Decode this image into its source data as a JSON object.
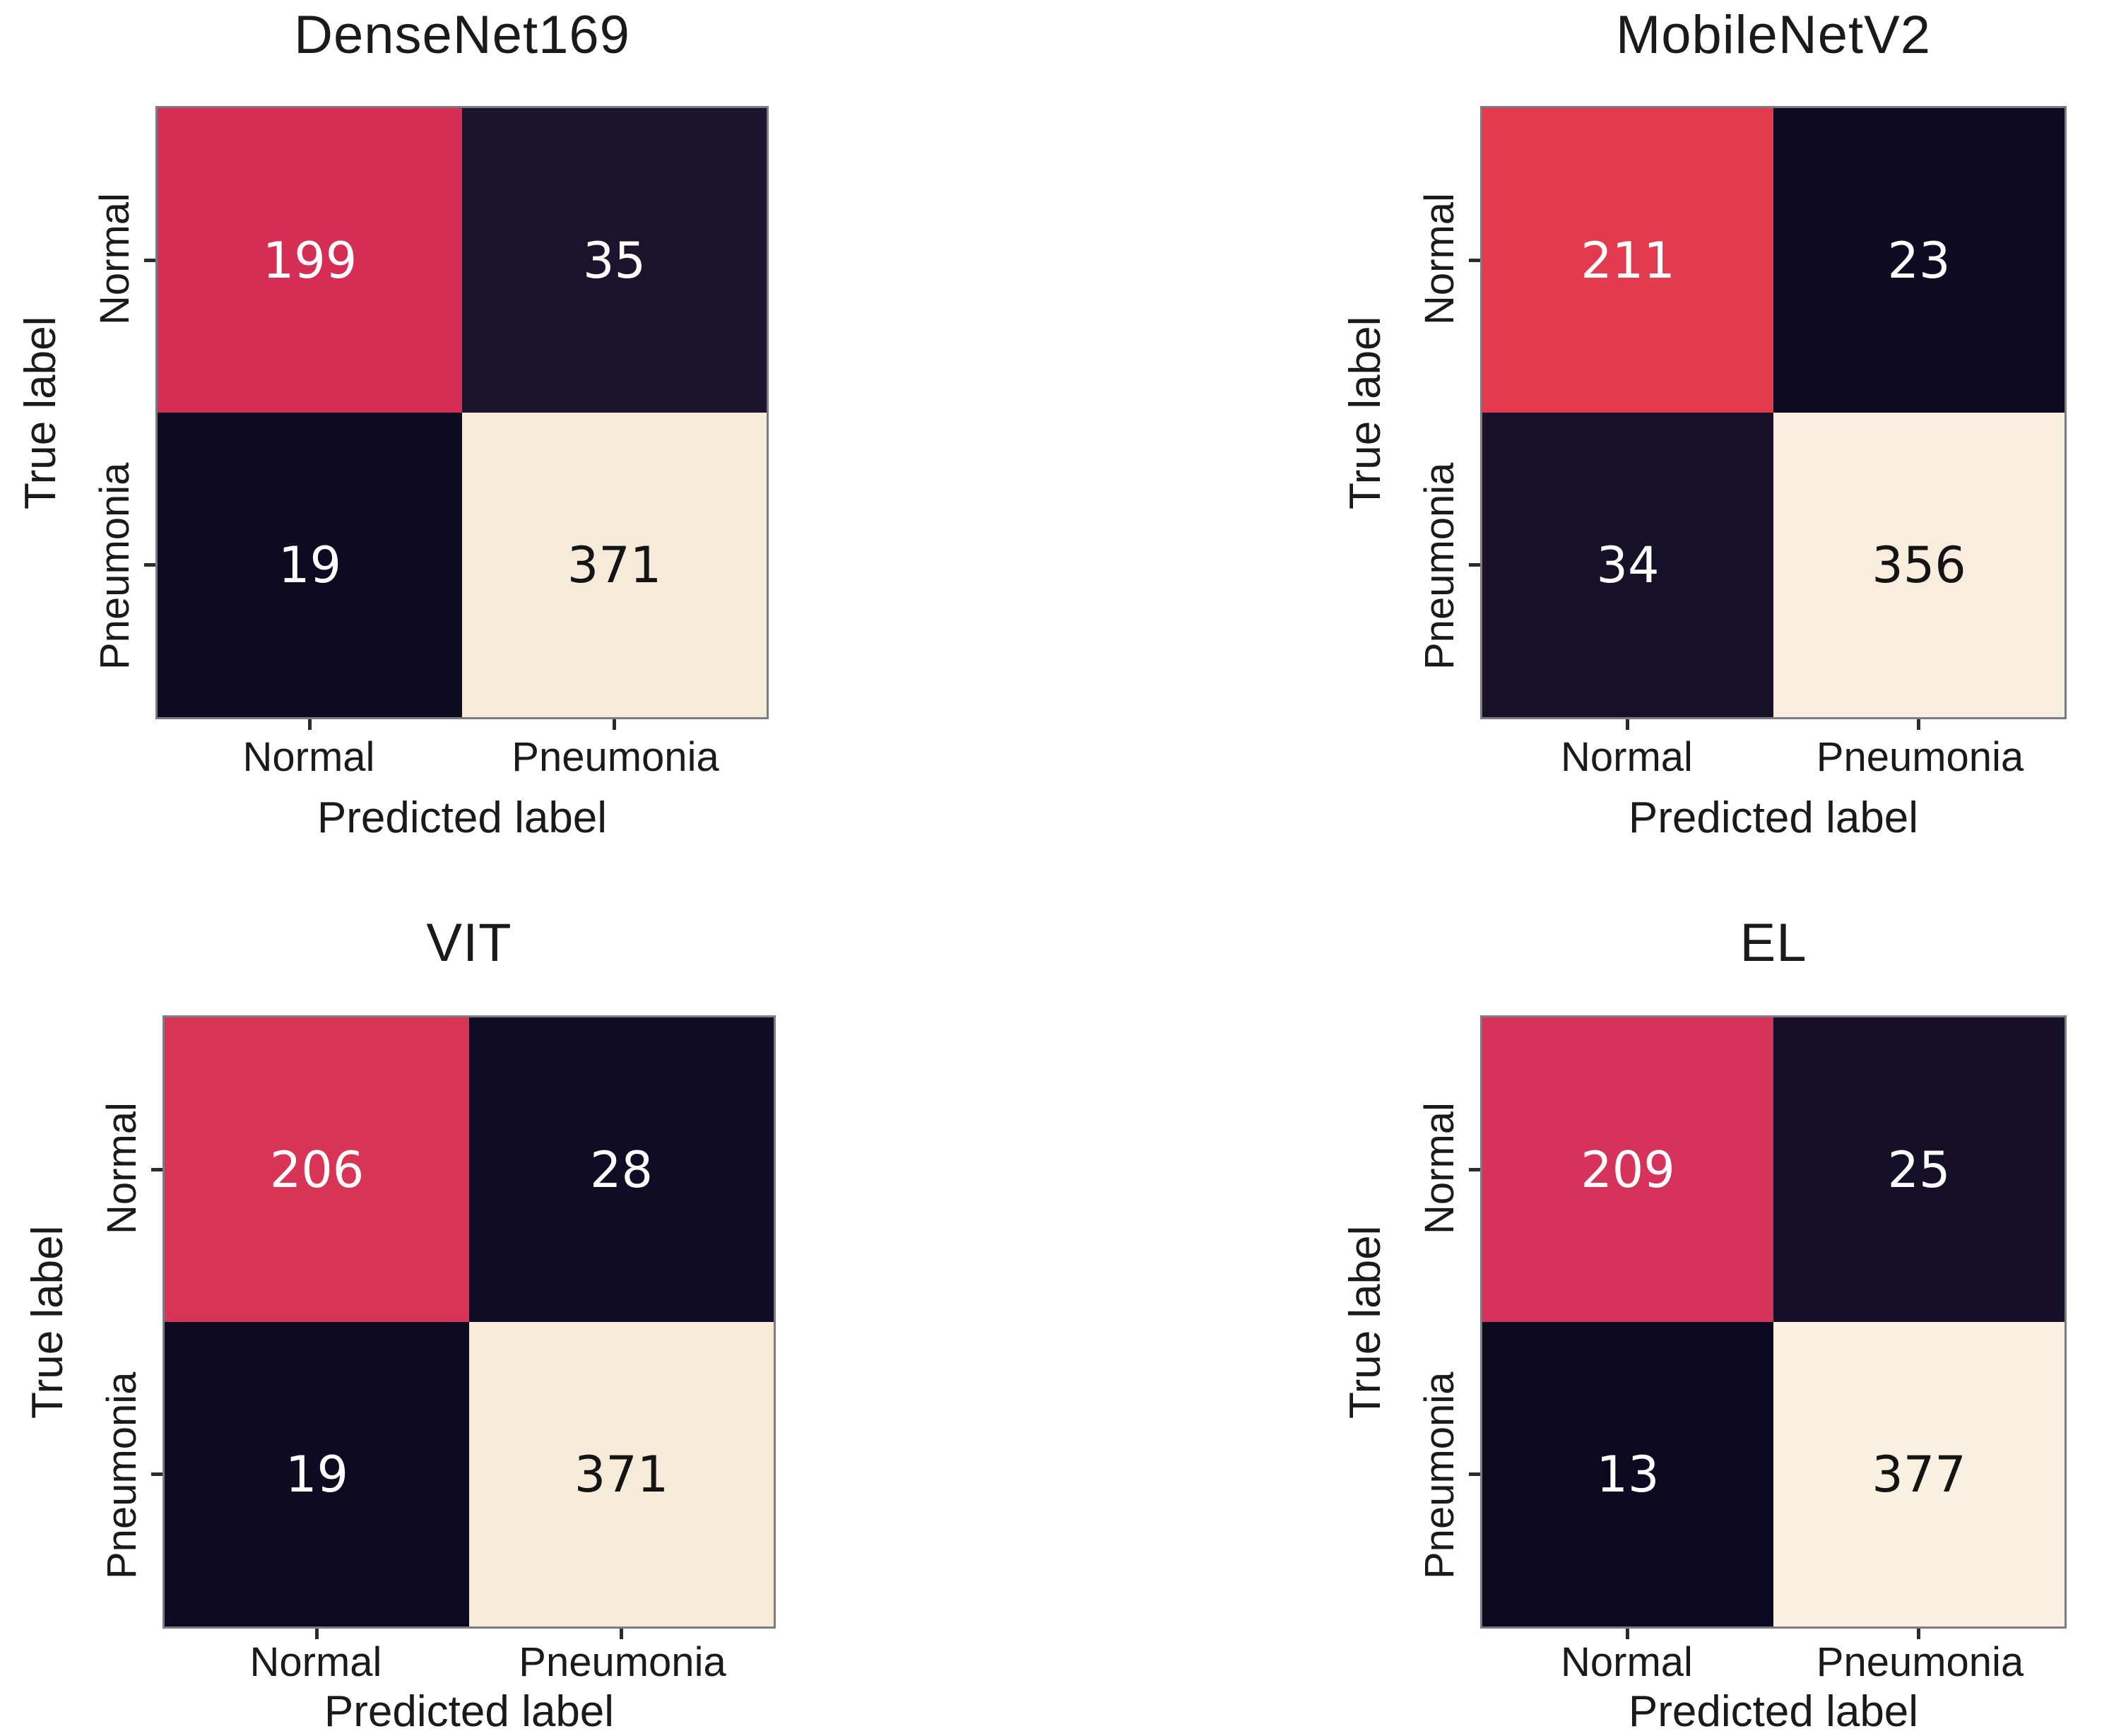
{
  "figure_type": "confusion-matrix-grid",
  "chart_data": [
    {
      "type": "heatmap",
      "title": "DenseNet169",
      "xlabel": "Predicted label",
      "ylabel": "True label",
      "xticks": [
        "Normal",
        "Pneumonia"
      ],
      "yticks": [
        "Normal",
        "Pneumonia"
      ],
      "values": [
        [
          199,
          35
        ],
        [
          19,
          371
        ]
      ],
      "colors": [
        [
          "#d62d55",
          "#1c132e"
        ],
        [
          "#0e0a22",
          "#f6ead8"
        ]
      ],
      "text_colors": [
        [
          "#ffffff",
          "#ffffff"
        ],
        [
          "#ffffff",
          "#141414"
        ]
      ]
    },
    {
      "type": "heatmap",
      "title": "MobileNetV2",
      "xlabel": "Predicted label",
      "ylabel": "True label",
      "xticks": [
        "Normal",
        "Pneumonia"
      ],
      "yticks": [
        "Normal",
        "Pneumonia"
      ],
      "values": [
        [
          211,
          23
        ],
        [
          34,
          356
        ]
      ],
      "colors": [
        [
          "#e23b4f",
          "#0d0a22"
        ],
        [
          "#161129",
          "#f9eedd"
        ]
      ],
      "text_colors": [
        [
          "#ffffff",
          "#ffffff"
        ],
        [
          "#ffffff",
          "#141414"
        ]
      ]
    },
    {
      "type": "heatmap",
      "title": "VIT",
      "xlabel": "Predicted label",
      "ylabel": "True label",
      "xticks": [
        "Normal",
        "Pneumonia"
      ],
      "yticks": [
        "Normal",
        "Pneumonia"
      ],
      "values": [
        [
          206,
          28
        ],
        [
          19,
          371
        ]
      ],
      "colors": [
        [
          "#d83456",
          "#110c26"
        ],
        [
          "#0e0a22",
          "#f6ead8"
        ]
      ],
      "text_colors": [
        [
          "#ffffff",
          "#ffffff"
        ],
        [
          "#ffffff",
          "#141414"
        ]
      ]
    },
    {
      "type": "heatmap",
      "title": "EL",
      "xlabel": "Predicted label",
      "ylabel": "True label",
      "xticks": [
        "Normal",
        "Pneumonia"
      ],
      "yticks": [
        "Normal",
        "Pneumonia"
      ],
      "values": [
        [
          209,
          25
        ],
        [
          13,
          377
        ]
      ],
      "colors": [
        [
          "#d5335a",
          "#151027"
        ],
        [
          "#0b0820",
          "#faf0e1"
        ]
      ],
      "text_colors": [
        [
          "#ffffff",
          "#ffffff"
        ],
        [
          "#ffffff",
          "#141414"
        ]
      ]
    }
  ]
}
